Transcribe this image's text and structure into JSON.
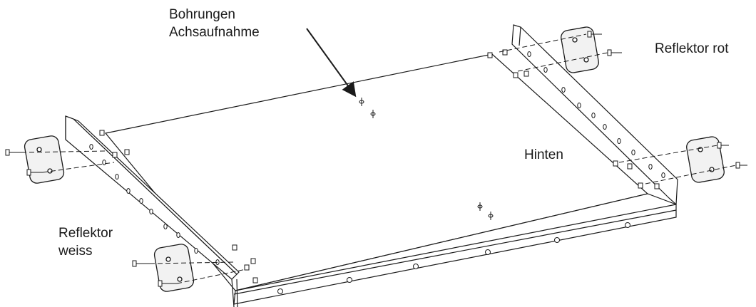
{
  "labels": {
    "drill_holes": {
      "line1": "Bohrungen",
      "line2": "Achsaufnahme"
    },
    "reflector_red": "Reflektor rot",
    "rear": "Hinten",
    "reflector_white": {
      "line1": "Reflektor",
      "line2": "weiss"
    }
  },
  "colors": {
    "line": "#1a1a1a",
    "background": "#ffffff",
    "reflector_face": "#f2f2f2"
  }
}
